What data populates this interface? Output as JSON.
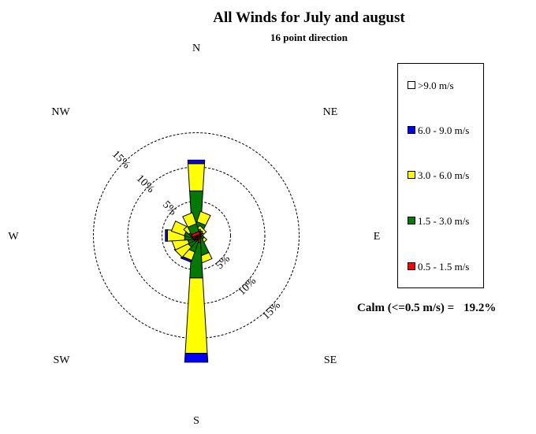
{
  "chart_data": {
    "type": "wind_rose",
    "title": "All Winds for July and august",
    "subtitle": "16 point direction",
    "directions": [
      "N",
      "NNE",
      "NE",
      "ENE",
      "E",
      "ESE",
      "SE",
      "SSE",
      "S",
      "SSW",
      "SW",
      "WSW",
      "W",
      "WNW",
      "NW",
      "NNW"
    ],
    "compass_labels": [
      "N",
      "NE",
      "E",
      "SE",
      "S",
      "SW",
      "W",
      "NW"
    ],
    "rings": [
      {
        "value": 5,
        "label": "5%"
      },
      {
        "value": 10,
        "label": "10%"
      },
      {
        "value": 15,
        "label": "15%"
      }
    ],
    "bins": [
      {
        "label": "0.5 - 1.5 m/s",
        "color": "#ff0000"
      },
      {
        "label": "1.5 - 3.0 m/s",
        "color": "#007a00"
      },
      {
        "label": "3.0 - 6.0 m/s",
        "color": "#ffff00"
      },
      {
        "label": "6.0 - 9.0 m/s",
        "color": "#0000ff"
      },
      {
        "label": ">9.0 m/s",
        "color": "#ffffff"
      }
    ],
    "series": [
      {
        "direction": "N",
        "values": [
          0.5,
          6.0,
          4.0,
          0.5,
          0
        ]
      },
      {
        "direction": "NNE",
        "values": [
          0.4,
          1.5,
          1.6,
          0,
          0
        ]
      },
      {
        "direction": "NE",
        "values": [
          0.3,
          0.6,
          0.5,
          0,
          0
        ]
      },
      {
        "direction": "ENE",
        "values": [
          0.3,
          0.4,
          0.2,
          0,
          0
        ]
      },
      {
        "direction": "E",
        "values": [
          0.3,
          0.4,
          0.2,
          0,
          0
        ]
      },
      {
        "direction": "ESE",
        "values": [
          0.3,
          0.4,
          0.2,
          0,
          0
        ]
      },
      {
        "direction": "SE",
        "values": [
          0.3,
          0.7,
          0.5,
          0,
          0
        ]
      },
      {
        "direction": "SSE",
        "values": [
          0.4,
          2.6,
          1.0,
          0,
          0
        ]
      },
      {
        "direction": "S",
        "values": [
          1.0,
          5.2,
          11.0,
          1.3,
          0
        ]
      },
      {
        "direction": "SSW",
        "values": [
          0.4,
          1.9,
          1.3,
          0.3,
          0
        ]
      },
      {
        "direction": "SW",
        "values": [
          0.4,
          1.3,
          2.0,
          0,
          0
        ]
      },
      {
        "direction": "WSW",
        "values": [
          0.4,
          1.0,
          2.2,
          0,
          0
        ]
      },
      {
        "direction": "W",
        "values": [
          0.4,
          1.3,
          2.5,
          0.3,
          0
        ]
      },
      {
        "direction": "WNW",
        "values": [
          0.4,
          1.2,
          2.0,
          0,
          0
        ]
      },
      {
        "direction": "NW",
        "values": [
          0.3,
          0.6,
          1.0,
          0,
          0
        ]
      },
      {
        "direction": "NNW",
        "values": [
          0.4,
          1.2,
          1.7,
          0,
          0
        ]
      }
    ],
    "calm_label": "Calm (<=0.5 m/s) =",
    "calm_value": "19.2%"
  },
  "legend": [
    {
      "label": ">9.0 m/s",
      "color": "#ffffff"
    },
    {
      "label": "6.0 - 9.0 m/s",
      "color": "#0000ff"
    },
    {
      "label": "3.0 - 6.0 m/s",
      "color": "#ffff00"
    },
    {
      "label": "1.5 - 3.0 m/s",
      "color": "#007a00"
    },
    {
      "label": "0.5 - 1.5 m/s",
      "color": "#ff0000"
    }
  ]
}
